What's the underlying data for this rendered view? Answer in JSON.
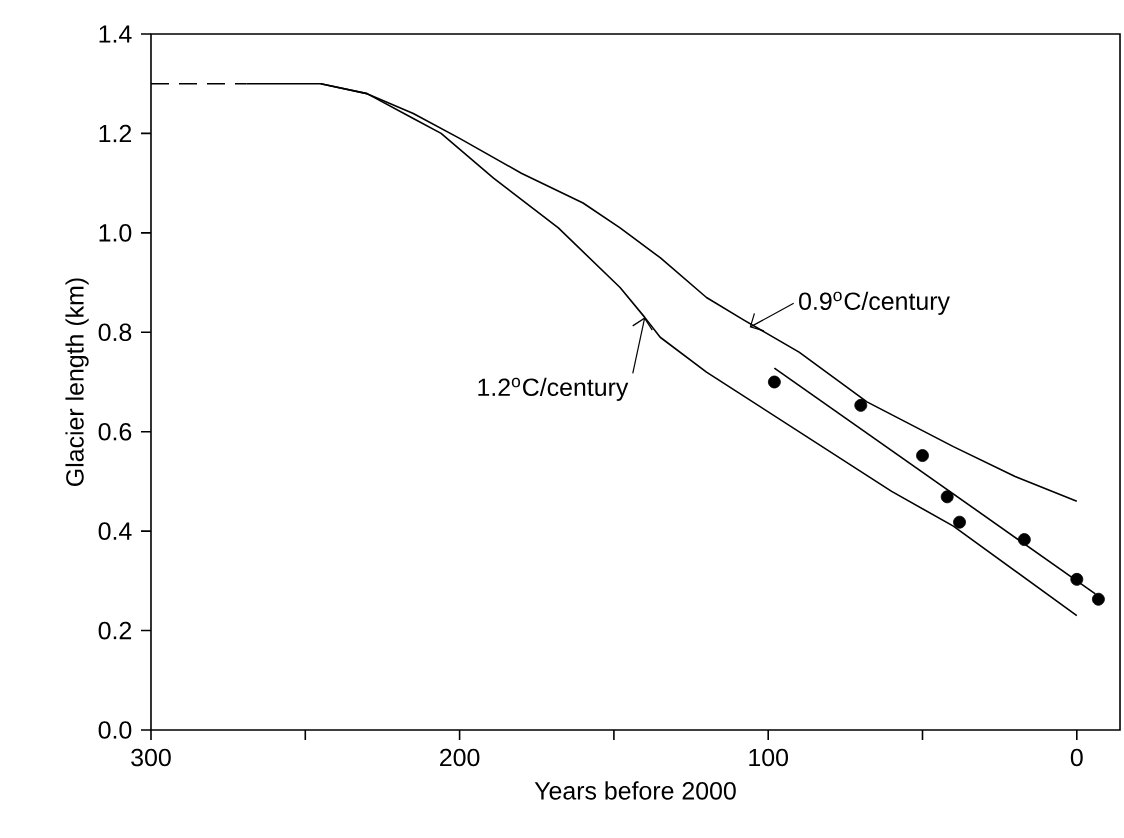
{
  "chart_data": {
    "type": "line",
    "xlabel": "Years before 2000",
    "ylabel": "Glacier length (km)",
    "xlim": [
      300,
      -14
    ],
    "ylim": [
      0,
      1.4
    ],
    "xticks": [
      300,
      {
        "value": 250,
        "label": null
      },
      200,
      {
        "value": 150,
        "label": null
      },
      100,
      {
        "value": 50,
        "label": null
      },
      0
    ],
    "yticks": [
      {
        "value": 0,
        "label": "0.0"
      },
      0.2,
      0.4,
      0.6,
      0.8,
      {
        "value": 1.0,
        "label": "1.0"
      },
      1.2,
      1.4
    ],
    "grid": false,
    "series": [
      {
        "color": "#000000",
        "line_style": "dashed",
        "x": [
          300,
          269
        ],
        "values": [
          1.3,
          1.3
        ]
      },
      {
        "color": "#000000",
        "line_style": "solid",
        "x": [
          269,
          245,
          230,
          215,
          200,
          180,
          160,
          148,
          135,
          120,
          108,
          90,
          68,
          40,
          20,
          0
        ],
        "values": [
          1.3,
          1.3,
          1.28,
          1.24,
          1.19,
          1.12,
          1.06,
          1.01,
          0.95,
          0.87,
          0.825,
          0.76,
          0.66,
          0.57,
          0.51,
          0.46
        ]
      },
      {
        "color": "#000000",
        "line_style": "solid",
        "x": [
          245,
          230,
          215,
          206,
          189,
          168,
          148,
          140,
          135,
          120,
          90,
          60,
          40,
          20,
          0
        ],
        "values": [
          1.3,
          1.28,
          1.23,
          1.2,
          1.11,
          1.01,
          0.89,
          0.83,
          0.79,
          0.72,
          0.6,
          0.48,
          0.41,
          0.32,
          0.23
        ]
      },
      {
        "type": "scatter",
        "marker": "circle",
        "color": "#000000",
        "x": [
          98,
          70,
          50,
          42,
          38,
          17,
          0,
          -7
        ],
        "values": [
          0.7,
          0.653,
          0.552,
          0.469,
          0.418,
          0.383,
          0.303,
          0.263
        ]
      },
      {
        "color": "#000000",
        "line_style": "solid",
        "x": [
          98,
          -6
        ],
        "values": [
          0.728,
          0.274
        ]
      }
    ],
    "annotations": [
      {
        "text": "0.9$^{o}$C/century",
        "x": 106,
        "y": 0.81
      },
      {
        "text": "1.2$^{o}$C/century",
        "x": 140,
        "y": 0.83
      }
    ]
  }
}
